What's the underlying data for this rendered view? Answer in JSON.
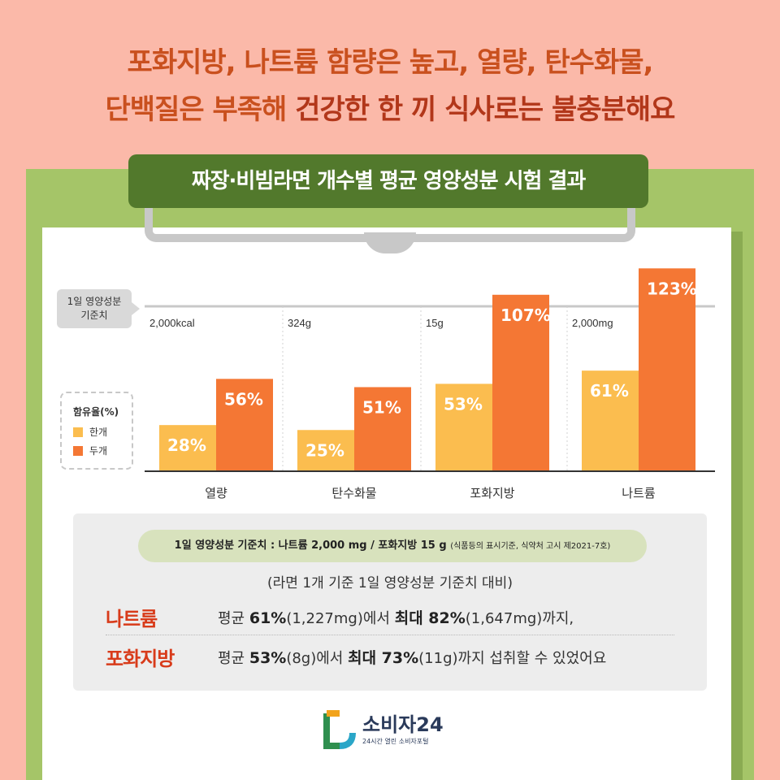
{
  "headline": {
    "line1": "포화지방, 나트륨 함량은 높고, 열량, 탄수화물,",
    "line2_pre": "단백질은 부족해 ",
    "line2_hl": "건강한 한 끼 식사로는 불충분해요"
  },
  "banner": "짜장·비빔라면 개수별 평균 영양성분 시험 결과",
  "ref_label_1": "1일 영양성분",
  "ref_label_2": "기준치",
  "legend": {
    "title": "함유율(%)",
    "items": [
      "한개",
      "두개"
    ]
  },
  "chart_data": {
    "type": "bar",
    "categories": [
      "열량",
      "탄수화물",
      "포화지방",
      "나트륨"
    ],
    "reference_values": [
      "2,000kcal",
      "324g",
      "15g",
      "2,000mg"
    ],
    "series": [
      {
        "name": "한개",
        "values": [
          28,
          25,
          53,
          61
        ],
        "color": "#fbbd4f"
      },
      {
        "name": "두개",
        "values": [
          56,
          51,
          107,
          123
        ],
        "color": "#f47734"
      }
    ],
    "reference_line": 100,
    "ylim": [
      0,
      123
    ],
    "grid": false,
    "legend_position": "left"
  },
  "note": {
    "pill_main": "1일 영양성분 기준치 : 나트륨 2,000 mg / 포화지방 15 g ",
    "pill_small": "(식품등의 표시기준, 식약처 고시 제2021-7호)",
    "sub": "(라면 1개 기준 1일 영양성분 기준치 대비)"
  },
  "facts": [
    {
      "label": "나트륨",
      "t1": "평균 ",
      "b1": "61%",
      "t2": "(1,227mg)에서 ",
      "b2": "최대 82%",
      "t3": "(1,647mg)까지,"
    },
    {
      "label": "포화지방",
      "t1": "평균 ",
      "b1": "53%",
      "t2": "(8g)에서 ",
      "b2": "최대 73%",
      "t3": "(11g)까지 섭취할 수 있었어요"
    }
  ],
  "logo": {
    "brand": "소비자24",
    "tagline": "24시간 열린 소비자포털"
  }
}
